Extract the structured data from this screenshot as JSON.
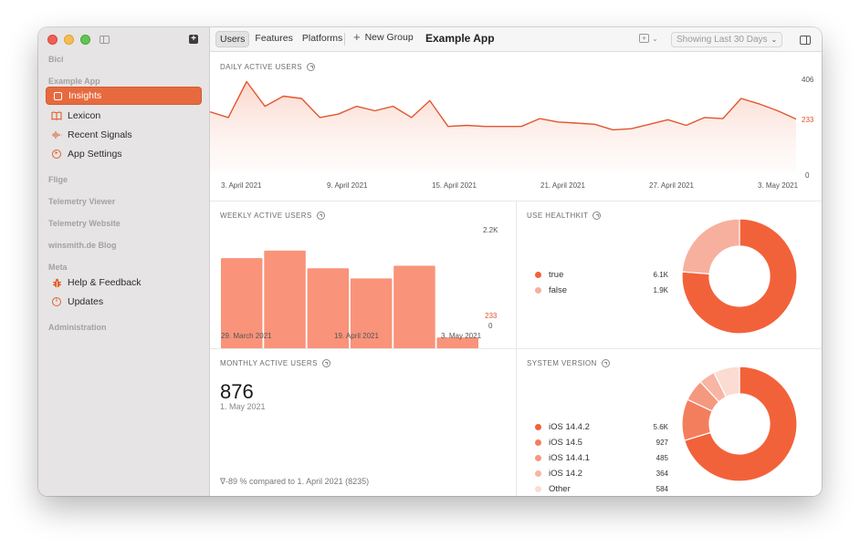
{
  "sidebar": {
    "section_bici": "Bici",
    "section_example_app": "Example App",
    "items_app": [
      {
        "label": "Insights",
        "icon": "insights-square-icon",
        "active": true
      },
      {
        "label": "Lexicon",
        "icon": "book-icon"
      },
      {
        "label": "Recent Signals",
        "icon": "waveform-icon"
      },
      {
        "label": "App Settings",
        "icon": "settings-circle-icon"
      }
    ],
    "section_flige": "Flige",
    "section_telemetry_viewer": "Telemetry Viewer",
    "section_telemetry_website": "Telemetry Website",
    "section_blog": "winsmith.de Blog",
    "section_meta": "Meta",
    "items_meta": [
      {
        "label": "Help & Feedback",
        "icon": "ladybug-icon"
      },
      {
        "label": "Updates",
        "icon": "info-icon"
      }
    ],
    "section_administration": "Administration"
  },
  "toolbar": {
    "tabs": [
      "Users",
      "Features",
      "Platforms"
    ],
    "selected_tab": "Users",
    "new_group_label": "New Group",
    "title": "Example App",
    "date_range": "Showing Last 30 Days"
  },
  "colors": {
    "accent": "#e76a3f",
    "line": "#e2562e",
    "bar": "#f9937a",
    "donut_primary": "#f2623a",
    "donut_secondary": "#f7b09d"
  },
  "dau": {
    "title": "DAILY ACTIVE USERS",
    "max_label": "406",
    "current_label": "233",
    "min_label": "0"
  },
  "wau": {
    "title": "WEEKLY ACTIVE USERS",
    "max_label": "2.2K",
    "current_label": "233",
    "min_label": "0"
  },
  "healthkit": {
    "title": "USE HEALTHKIT",
    "legend": [
      {
        "label": "true",
        "value": "6.1K",
        "color": "#f2623a"
      },
      {
        "label": "false",
        "value": "1.9K",
        "color": "#f7b09d"
      }
    ]
  },
  "mau": {
    "title": "MONTHLY ACTIVE USERS",
    "value": "876",
    "date": "1. May 2021",
    "compare": "∇-89 % compared to 1. April 2021 (8235)"
  },
  "system_version": {
    "title": "SYSTEM VERSION",
    "legend": [
      {
        "label": "iOS  14.4.2",
        "value": "5.6K",
        "color": "#f2623a"
      },
      {
        "label": "iOS  14.5",
        "value": "927",
        "color": "#f37e5e"
      },
      {
        "label": "iOS  14.4.1",
        "value": "485",
        "color": "#f59880"
      },
      {
        "label": "iOS  14.2",
        "value": "364",
        "color": "#f8b5a3"
      },
      {
        "label": "Other",
        "value": "584",
        "color": "#fbdcd2"
      }
    ]
  },
  "chart_data": [
    {
      "type": "area",
      "title": "DAILY ACTIVE USERS",
      "x_ticks": [
        "3. April 2021",
        "9. April 2021",
        "15. April 2021",
        "21. April 2021",
        "27. April 2021",
        "3. May 2021"
      ],
      "x": [
        "2021-04-03",
        "2021-04-04",
        "2021-04-05",
        "2021-04-06",
        "2021-04-07",
        "2021-04-08",
        "2021-04-09",
        "2021-04-10",
        "2021-04-11",
        "2021-04-12",
        "2021-04-13",
        "2021-04-14",
        "2021-04-15",
        "2021-04-16",
        "2021-04-17",
        "2021-04-18",
        "2021-04-19",
        "2021-04-20",
        "2021-04-21",
        "2021-04-22",
        "2021-04-23",
        "2021-04-24",
        "2021-04-25",
        "2021-04-26",
        "2021-04-27",
        "2021-04-28",
        "2021-04-29",
        "2021-04-30",
        "2021-05-01",
        "2021-05-02",
        "2021-05-03",
        "2021-05-04",
        "2021-05-05"
      ],
      "values": [
        265,
        240,
        400,
        290,
        335,
        325,
        240,
        255,
        290,
        270,
        290,
        240,
        315,
        200,
        205,
        200,
        200,
        200,
        235,
        220,
        215,
        210,
        185,
        190,
        210,
        230,
        205,
        240,
        235,
        325,
        300,
        270,
        233
      ],
      "ylim": [
        0,
        406
      ],
      "grid": false
    },
    {
      "type": "bar",
      "title": "WEEKLY ACTIVE USERS",
      "x_ticks": [
        "29. March 2021",
        "19. April 2021",
        "3. May 2021"
      ],
      "categories": [
        "2021-03-29",
        "2021-04-05",
        "2021-04-12",
        "2021-04-19",
        "2021-04-26",
        "2021-05-03"
      ],
      "values": [
        1800,
        1950,
        1600,
        1400,
        1650,
        233
      ],
      "ylim": [
        0,
        2200
      ]
    },
    {
      "type": "pie",
      "title": "USE HEALTHKIT",
      "categories": [
        "true",
        "false"
      ],
      "values": [
        6100,
        1900
      ]
    },
    {
      "type": "pie",
      "title": "SYSTEM VERSION",
      "categories": [
        "iOS 14.4.2",
        "iOS 14.5",
        "iOS 14.4.1",
        "iOS 14.2",
        "Other"
      ],
      "values": [
        5600,
        927,
        485,
        364,
        584
      ]
    }
  ]
}
